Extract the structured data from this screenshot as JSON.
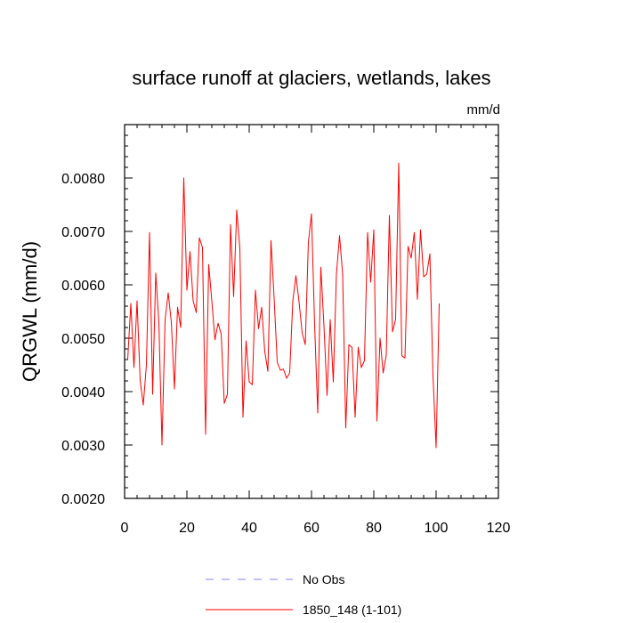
{
  "chart_data": {
    "type": "line",
    "title": "surface runoff at glaciers, wetlands, lakes",
    "units": "mm/d",
    "ylabel": "QRGWL  (mm/d)",
    "xlabel": "",
    "xlim": [
      0,
      120
    ],
    "ylim": [
      0.002,
      0.009
    ],
    "x_ticks": [
      0,
      20,
      40,
      60,
      80,
      100,
      120
    ],
    "x_tick_labels": [
      "0",
      "20",
      "40",
      "60",
      "80",
      "100",
      "120"
    ],
    "y_ticks": [
      0.002,
      0.003,
      0.004,
      0.005,
      0.006,
      0.007,
      0.008
    ],
    "y_tick_labels": [
      "0.0020",
      "0.0030",
      "0.0040",
      "0.0050",
      "0.0060",
      "0.0070",
      "0.0080"
    ],
    "grid": false,
    "legend_position": "bottom",
    "legend": [
      {
        "name": "No Obs",
        "color": "#8080ff",
        "style": "dashed"
      },
      {
        "name": "1850_148 (1-101)",
        "color": "#ff0000",
        "style": "solid"
      }
    ],
    "series": [
      {
        "name": "No Obs",
        "color": "#8080ff",
        "x": [],
        "values": []
      },
      {
        "name": "1850_148 (1-101)",
        "color": "#ff0000",
        "x": [
          1,
          2,
          3,
          4,
          5,
          6,
          7,
          8,
          9,
          10,
          11,
          12,
          13,
          14,
          15,
          16,
          17,
          18,
          19,
          20,
          21,
          22,
          23,
          24,
          25,
          26,
          27,
          28,
          29,
          30,
          31,
          32,
          33,
          34,
          35,
          36,
          37,
          38,
          39,
          40,
          41,
          42,
          43,
          44,
          45,
          46,
          47,
          48,
          49,
          50,
          51,
          52,
          53,
          54,
          55,
          56,
          57,
          58,
          59,
          60,
          61,
          62,
          63,
          64,
          65,
          66,
          67,
          68,
          69,
          70,
          71,
          72,
          73,
          74,
          75,
          76,
          77,
          78,
          79,
          80,
          81,
          82,
          83,
          84,
          85,
          86,
          87,
          88,
          89,
          90,
          91,
          92,
          93,
          94,
          95,
          96,
          97,
          98,
          99,
          100,
          101
        ],
        "values": [
          0.0046,
          0.00565,
          0.00445,
          0.0057,
          0.0042,
          0.00375,
          0.0045,
          0.00698,
          0.00395,
          0.00622,
          0.0053,
          0.003,
          0.00535,
          0.00585,
          0.0053,
          0.00405,
          0.00558,
          0.0052,
          0.008,
          0.0059,
          0.00662,
          0.0057,
          0.00548,
          0.00688,
          0.0067,
          0.0032,
          0.00638,
          0.0057,
          0.00497,
          0.00528,
          0.00508,
          0.00378,
          0.00395,
          0.00713,
          0.00578,
          0.0074,
          0.00668,
          0.00352,
          0.00495,
          0.00418,
          0.00413,
          0.0059,
          0.00518,
          0.00558,
          0.00475,
          0.00438,
          0.00683,
          0.00575,
          0.00455,
          0.0044,
          0.00442,
          0.00425,
          0.00435,
          0.0057,
          0.00617,
          0.00568,
          0.0051,
          0.00488,
          0.0068,
          0.00733,
          0.00525,
          0.0036,
          0.00633,
          0.00523,
          0.00393,
          0.00535,
          0.00418,
          0.0062,
          0.00692,
          0.0062,
          0.00332,
          0.00488,
          0.00483,
          0.00352,
          0.00483,
          0.00445,
          0.00458,
          0.00698,
          0.00605,
          0.00703,
          0.00345,
          0.005,
          0.00435,
          0.00468,
          0.0073,
          0.00512,
          0.00535,
          0.00828,
          0.00467,
          0.00463,
          0.00672,
          0.0065,
          0.00698,
          0.00573,
          0.00703,
          0.00615,
          0.0062,
          0.00658,
          0.0043,
          0.00295,
          0.00565
        ]
      }
    ]
  }
}
